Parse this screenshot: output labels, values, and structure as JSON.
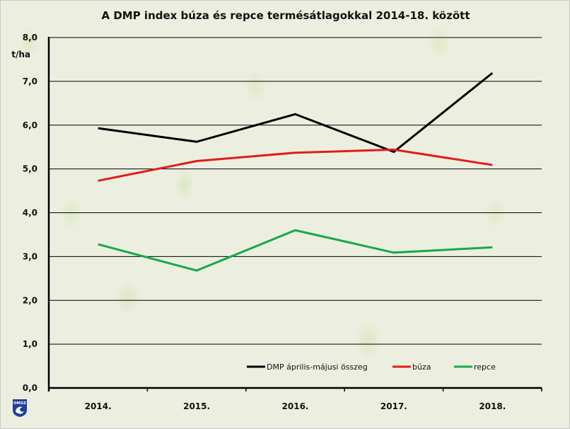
{
  "chart_data": {
    "type": "line",
    "title": "A DMP index búza és repce termésátlagokkal 2014-18. között",
    "ylabel": "t/ha",
    "xlabel": "",
    "categories": [
      "2014.",
      "2015.",
      "2016.",
      "2017.",
      "2018."
    ],
    "ylim": [
      0,
      8
    ],
    "yticks": [
      0,
      1,
      2,
      3,
      4,
      5,
      6,
      7,
      8
    ],
    "ytick_labels": [
      "0,0",
      "1,0",
      "2,0",
      "3,0",
      "4,0",
      "5,0",
      "6,0",
      "7,0",
      "8,0"
    ],
    "grid": true,
    "legend_position": "bottom-right",
    "series": [
      {
        "name": "DMP április-májusi összeg",
        "color": "#000000",
        "values": [
          5.93,
          5.62,
          6.25,
          5.39,
          7.19
        ]
      },
      {
        "name": "búza",
        "color": "#e31b1b",
        "values": [
          4.73,
          5.18,
          5.37,
          5.44,
          5.09
        ]
      },
      {
        "name": "repce",
        "color": "#18a84a",
        "values": [
          3.28,
          2.68,
          3.6,
          3.09,
          3.21
        ]
      }
    ]
  },
  "logo": {
    "text": "OMSZ",
    "color": "#1f3f99"
  }
}
